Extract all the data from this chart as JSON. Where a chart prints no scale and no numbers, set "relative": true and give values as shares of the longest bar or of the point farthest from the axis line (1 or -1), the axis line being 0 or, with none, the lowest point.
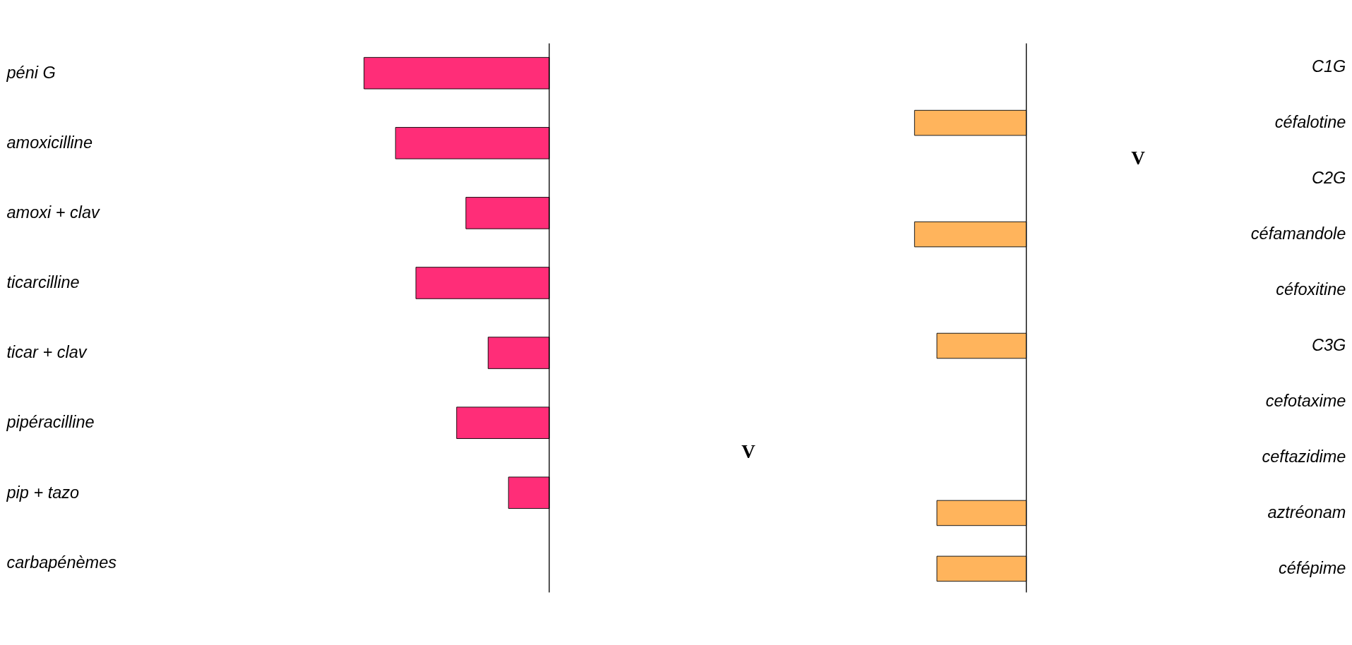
{
  "chart_data": [
    {
      "type": "bar",
      "orientation": "horizontal",
      "relative": true,
      "color": "#ff2d78",
      "categories": [
        "péni G",
        "amoxicilline",
        "amoxi + clav",
        "ticarcilline",
        "ticar + clav",
        "pipéracilline",
        "pip + tazo",
        "carbapénèmes"
      ],
      "values": [
        -1,
        -0.83,
        -0.45,
        -0.72,
        -0.33,
        -0.5,
        -0.22,
        null
      ]
    },
    {
      "type": "bar",
      "orientation": "horizontal",
      "relative": true,
      "color": "#ffb45c",
      "categories": [
        "C1G",
        "céfalotine",
        "C2G",
        "céfamandole",
        "céfoxitine",
        "C3G",
        "cefotaxime",
        "ceftazidime",
        "aztréonam",
        "céfépime"
      ],
      "values": [
        null,
        -1,
        null,
        -1,
        null,
        -0.8,
        null,
        null,
        -0.8,
        -0.8
      ],
      "annotations": [
        "V",
        "V"
      ]
    }
  ]
}
